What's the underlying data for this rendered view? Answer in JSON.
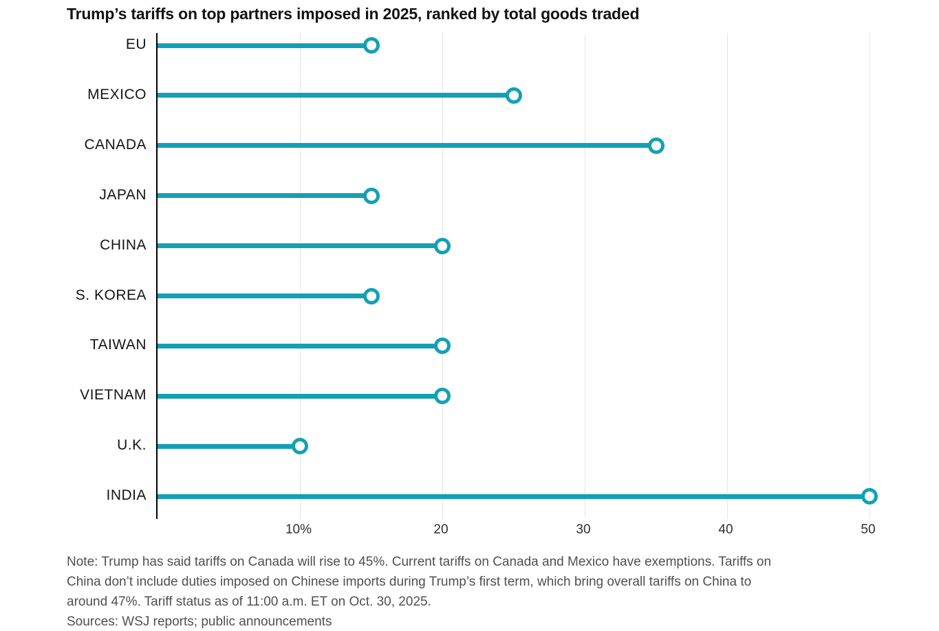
{
  "title": "Trump’s tariffs on top partners imposed in 2025, ranked by total goods traded",
  "chart_data": {
    "type": "bar",
    "variant": "lollipop",
    "orientation": "horizontal",
    "title": "Trump’s tariffs on top partners imposed in 2025, ranked by total goods traded",
    "categories": [
      "EU",
      "MEXICO",
      "CANADA",
      "JAPAN",
      "CHINA",
      "S. KOREA",
      "TAIWAN",
      "VIETNAM",
      "U.K.",
      "INDIA"
    ],
    "values": [
      15,
      25,
      35,
      15,
      20,
      15,
      20,
      20,
      10,
      50
    ],
    "unit": "%",
    "xlabel": "",
    "ylabel": "",
    "xlim": [
      0,
      50
    ],
    "x_ticks": [
      {
        "value": 10,
        "label": "10%"
      },
      {
        "value": 20,
        "label": "20"
      },
      {
        "value": 30,
        "label": "30"
      },
      {
        "value": 40,
        "label": "40"
      },
      {
        "value": 50,
        "label": "50"
      }
    ],
    "grid": "vertical-only",
    "legend": "none"
  },
  "note_lines": [
    "Note: Trump has said tariffs on Canada will rise to 45%. Current tariffs on Canada and Mexico have exemptions. Tariffs on",
    "China don’t include duties imposed on Chinese imports during Trump’s first term, which bring overall tariffs on China to",
    "around 47%. Tariff status as of 11:00 a.m. ET on Oct. 30, 2025."
  ],
  "sources": "Sources: WSJ reports; public announcements",
  "colors": {
    "accent": "#14a0b4",
    "marker_fill": "#ffffff",
    "axis": "#000000",
    "grid": "#e5e5e5",
    "title_text": "#121212",
    "category_text": "#141414",
    "tick_text": "#2e2e2e",
    "note_text": "#4f4f4f",
    "background": "#ffffff"
  }
}
